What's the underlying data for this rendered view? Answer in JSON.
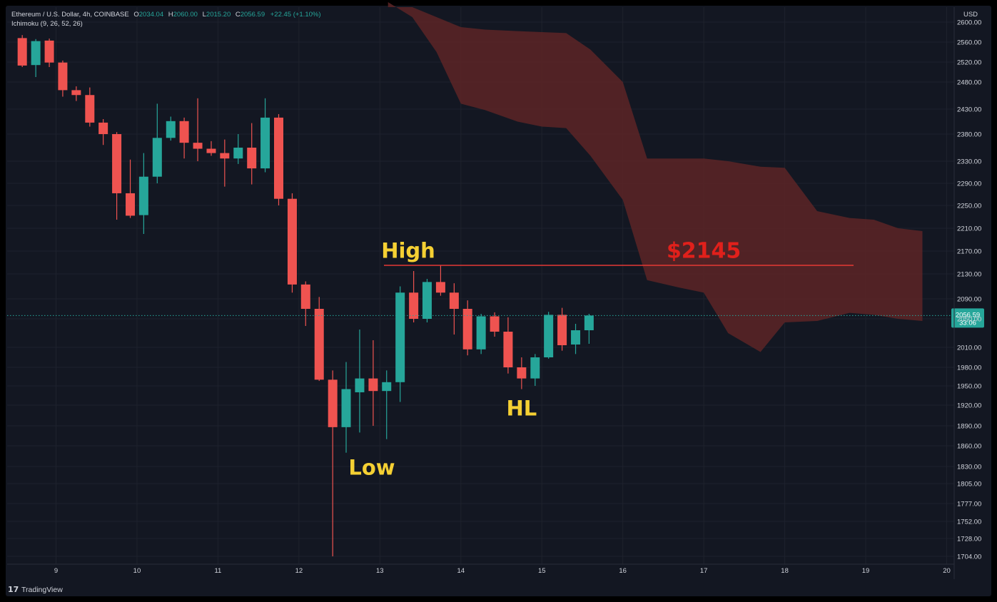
{
  "header": {
    "symbol": "Ethereum / U.S. Dollar, 4h, COINBASE",
    "o_label": "O",
    "o_value": "2034.04",
    "h_label": "H",
    "h_value": "2060.00",
    "l_label": "L",
    "l_value": "2015.20",
    "c_label": "C",
    "c_value": "2056.59",
    "change": "+22.45 (+1.10%)",
    "indicator": "Ichimoku (9, 26, 52, 26)"
  },
  "footer": {
    "brand": "TradingView"
  },
  "colors": {
    "background": "#131722",
    "grid": "#1e222d",
    "up": "#26a69a",
    "down": "#ef5350",
    "cloud": "#5a2426",
    "resistance_line": "#e53935",
    "annotation": "#f5d033",
    "price_annotation": "#e0201b",
    "last_price_bg": "#26a69a"
  },
  "chart_data": {
    "type": "candlestick",
    "currency": "USD",
    "x_range": [
      8.45,
      20.1
    ],
    "x_ticks": [
      "9",
      "10",
      "11",
      "12",
      "13",
      "14",
      "15",
      "16",
      "17",
      "18",
      "19",
      "20"
    ],
    "x_tick_values": [
      9,
      10,
      11,
      12,
      13,
      14,
      15,
      16,
      17,
      18,
      19,
      20
    ],
    "y_ticks": [
      "2600.00",
      "2560.00",
      "2520.00",
      "2480.00",
      "2430.00",
      "2380.00",
      "2330.00",
      "2290.00",
      "2250.00",
      "2210.00",
      "2170.00",
      "2130.00",
      "2090.00",
      "2050.00",
      "2010.00",
      "1980.00",
      "1950.00",
      "1920.00",
      "1890.00",
      "1860.00",
      "1830.00",
      "1805.00",
      "1777.00",
      "1752.00",
      "1728.00",
      "1704.00"
    ],
    "candles": [
      {
        "t": 8.583,
        "o": 2568,
        "h": 2574,
        "l": 2510,
        "c": 2513
      },
      {
        "t": 8.75,
        "o": 2514,
        "h": 2566,
        "l": 2490,
        "c": 2562
      },
      {
        "t": 8.917,
        "o": 2563,
        "h": 2567,
        "l": 2510,
        "c": 2519
      },
      {
        "t": 9.083,
        "o": 2519,
        "h": 2523,
        "l": 2453,
        "c": 2465
      },
      {
        "t": 9.25,
        "o": 2465,
        "h": 2472,
        "l": 2445,
        "c": 2456
      },
      {
        "t": 9.417,
        "o": 2456,
        "h": 2470,
        "l": 2395,
        "c": 2403
      },
      {
        "t": 9.583,
        "o": 2403,
        "h": 2410,
        "l": 2360,
        "c": 2380
      },
      {
        "t": 9.75,
        "o": 2380,
        "h": 2384,
        "l": 2225,
        "c": 2272
      },
      {
        "t": 9.917,
        "o": 2272,
        "h": 2333,
        "l": 2228,
        "c": 2232
      },
      {
        "t": 10.083,
        "o": 2233,
        "h": 2345,
        "l": 2200,
        "c": 2302
      },
      {
        "t": 10.25,
        "o": 2302,
        "h": 2440,
        "l": 2290,
        "c": 2373
      },
      {
        "t": 10.417,
        "o": 2373,
        "h": 2415,
        "l": 2368,
        "c": 2406
      },
      {
        "t": 10.583,
        "o": 2406,
        "h": 2413,
        "l": 2335,
        "c": 2364
      },
      {
        "t": 10.75,
        "o": 2364,
        "h": 2450,
        "l": 2330,
        "c": 2353
      },
      {
        "t": 10.917,
        "o": 2353,
        "h": 2367,
        "l": 2340,
        "c": 2345
      },
      {
        "t": 11.083,
        "o": 2345,
        "h": 2370,
        "l": 2284,
        "c": 2335
      },
      {
        "t": 11.25,
        "o": 2335,
        "h": 2380,
        "l": 2325,
        "c": 2355
      },
      {
        "t": 11.417,
        "o": 2355,
        "h": 2402,
        "l": 2288,
        "c": 2317
      },
      {
        "t": 11.583,
        "o": 2317,
        "h": 2450,
        "l": 2310,
        "c": 2413
      },
      {
        "t": 11.75,
        "o": 2413,
        "h": 2420,
        "l": 2250,
        "c": 2262
      },
      {
        "t": 11.917,
        "o": 2262,
        "h": 2272,
        "l": 2100,
        "c": 2113
      },
      {
        "t": 12.083,
        "o": 2113,
        "h": 2118,
        "l": 2040,
        "c": 2070
      },
      {
        "t": 12.25,
        "o": 2070,
        "h": 2093,
        "l": 1958,
        "c": 1960
      },
      {
        "t": 12.417,
        "o": 1960,
        "h": 1975,
        "l": 1704,
        "c": 1888
      },
      {
        "t": 12.583,
        "o": 1888,
        "h": 1988,
        "l": 1850,
        "c": 1945
      },
      {
        "t": 12.75,
        "o": 1940,
        "h": 2035,
        "l": 1880,
        "c": 1962
      },
      {
        "t": 12.917,
        "o": 1962,
        "h": 2020,
        "l": 1890,
        "c": 1942
      },
      {
        "t": 13.083,
        "o": 1942,
        "h": 1975,
        "l": 1870,
        "c": 1956
      },
      {
        "t": 13.25,
        "o": 1956,
        "h": 2110,
        "l": 1925,
        "c": 2100
      },
      {
        "t": 13.417,
        "o": 2100,
        "h": 2135,
        "l": 2045,
        "c": 2050
      },
      {
        "t": 13.583,
        "o": 2050,
        "h": 2122,
        "l": 2045,
        "c": 2117
      },
      {
        "t": 13.75,
        "o": 2117,
        "h": 2145,
        "l": 2095,
        "c": 2100
      },
      {
        "t": 13.917,
        "o": 2100,
        "h": 2115,
        "l": 2028,
        "c": 2070
      },
      {
        "t": 14.083,
        "o": 2070,
        "h": 2087,
        "l": 1998,
        "c": 2007
      },
      {
        "t": 14.25,
        "o": 2007,
        "h": 2060,
        "l": 2000,
        "c": 2055
      },
      {
        "t": 14.417,
        "o": 2055,
        "h": 2063,
        "l": 2025,
        "c": 2032
      },
      {
        "t": 14.583,
        "o": 2032,
        "h": 2053,
        "l": 1970,
        "c": 1980
      },
      {
        "t": 14.75,
        "o": 1980,
        "h": 1995,
        "l": 1945,
        "c": 1962
      },
      {
        "t": 14.917,
        "o": 1962,
        "h": 2000,
        "l": 1950,
        "c": 1995
      },
      {
        "t": 15.083,
        "o": 1995,
        "h": 2064,
        "l": 1993,
        "c": 2058
      },
      {
        "t": 15.25,
        "o": 2058,
        "h": 2072,
        "l": 2005,
        "c": 2013
      },
      {
        "t": 15.417,
        "o": 2014,
        "h": 2043,
        "l": 2000,
        "c": 2034
      },
      {
        "t": 15.583,
        "o": 2034,
        "h": 2060,
        "l": 2015,
        "c": 2056.59
      }
    ],
    "cloud": {
      "x": [
        13.1,
        13.4,
        13.7,
        14.0,
        14.3,
        14.7,
        15.0,
        15.3,
        15.6,
        16.0,
        16.3,
        16.7,
        17.0,
        17.3,
        17.7,
        18.0,
        18.4,
        18.8,
        19.1,
        19.4,
        19.7
      ],
      "upper": [
        2640,
        2640,
        2610,
        2590,
        2585,
        2582,
        2580,
        2578,
        2545,
        2480,
        2335,
        2335,
        2335,
        2330,
        2320,
        2318,
        2240,
        2228,
        2225,
        2210,
        2205
      ],
      "lower": [
        2640,
        2610,
        2540,
        2440,
        2428,
        2405,
        2395,
        2392,
        2340,
        2260,
        2120,
        2108,
        2100,
        2030,
        2003,
        2045,
        2047,
        2062,
        2058,
        2050,
        2047
      ]
    },
    "resistance": {
      "value": 2145,
      "x_start": 13.05,
      "x_end": 18.85
    },
    "last_price": {
      "value": "2056.59",
      "countdown": "33:06"
    },
    "annotations": [
      {
        "text": "High",
        "t": 13.35,
        "y": 2158,
        "size": 29
      },
      {
        "text": "$2145",
        "t": 17.0,
        "y": 2158,
        "size": 30,
        "price": true
      },
      {
        "text": "HL",
        "t": 14.75,
        "y": 1905,
        "size": 29
      },
      {
        "text": "Low",
        "t": 12.9,
        "y": 1818,
        "size": 29
      }
    ]
  }
}
